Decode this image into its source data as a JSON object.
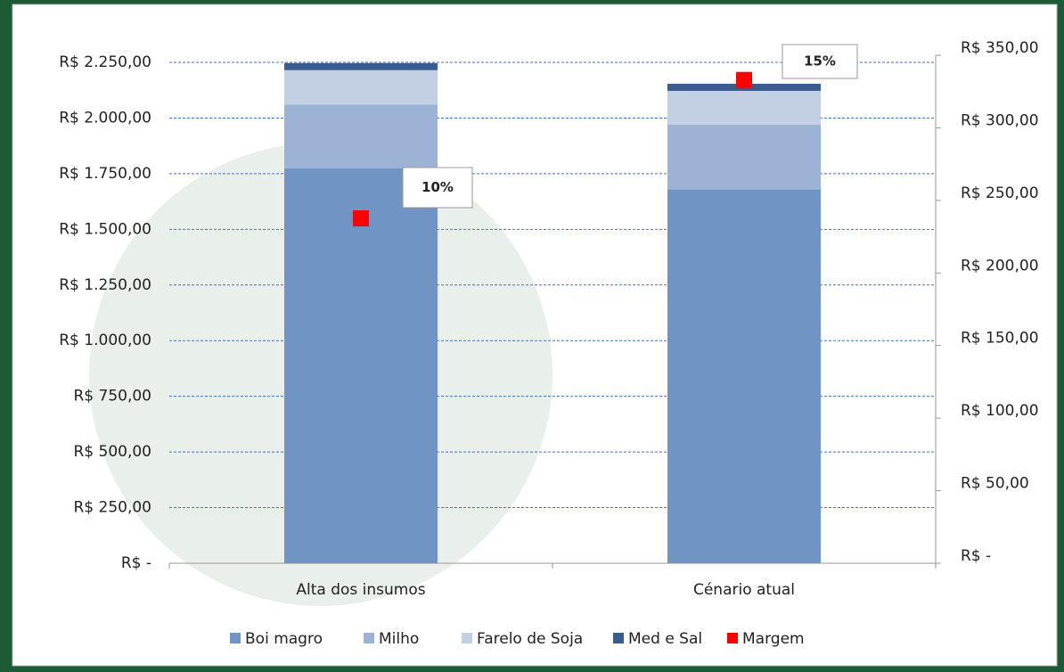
{
  "chart_data": {
    "type": "bar",
    "categories": [
      "Alta dos insumos",
      "Cénario atual"
    ],
    "stacked": true,
    "series": [
      {
        "name": "Boi magro",
        "color": "#7094c4",
        "values": [
          1775,
          1680
        ]
      },
      {
        "name": "Milho",
        "color": "#9db3d6",
        "values": [
          285,
          290
        ]
      },
      {
        "name": "Farelo de Soja",
        "color": "#c3cfe3",
        "values": [
          155,
          152
        ]
      },
      {
        "name": "Med e Sal",
        "color": "#3a5d8f",
        "values": [
          32,
          32
        ]
      },
      {
        "name": "Margem",
        "color": "#ff0000",
        "values": [
          237.6,
          333
        ],
        "axis": "y2",
        "marker": "square"
      }
    ],
    "annotations": [
      "10%",
      "15%"
    ],
    "ylim": [
      0,
      2250
    ],
    "yticks": [
      {
        "value": 0,
        "label": "R$ -"
      },
      {
        "value": 250,
        "label": "R$ 250,00"
      },
      {
        "value": 500,
        "label": "R$ 500,00"
      },
      {
        "value": 750,
        "label": "R$ 750,00"
      },
      {
        "value": 1000,
        "label": "R$ 1.000,00"
      },
      {
        "value": 1250,
        "label": "R$ 1.250,00"
      },
      {
        "value": 1500,
        "label": "R$ 1.500,00"
      },
      {
        "value": 1750,
        "label": "R$ 1.750,00"
      },
      {
        "value": 2000,
        "label": "R$ 2.000,00"
      },
      {
        "value": 2250,
        "label": "R$ 2.250,00"
      }
    ],
    "y2lim": [
      0,
      350
    ],
    "y2ticks": [
      {
        "value": 0,
        "label": "R$ -"
      },
      {
        "value": 50,
        "label": "R$ 50,00"
      },
      {
        "value": 100,
        "label": "R$ 100,00"
      },
      {
        "value": 150,
        "label": "R$ 150,00"
      },
      {
        "value": 200,
        "label": "R$ 200,00"
      },
      {
        "value": 250,
        "label": "R$ 250,00"
      },
      {
        "value": 300,
        "label": "R$ 300,00"
      },
      {
        "value": 350,
        "label": "R$ 350,00"
      }
    ],
    "grid": true,
    "grid_color": "#4472c4",
    "legend": "bottom"
  }
}
